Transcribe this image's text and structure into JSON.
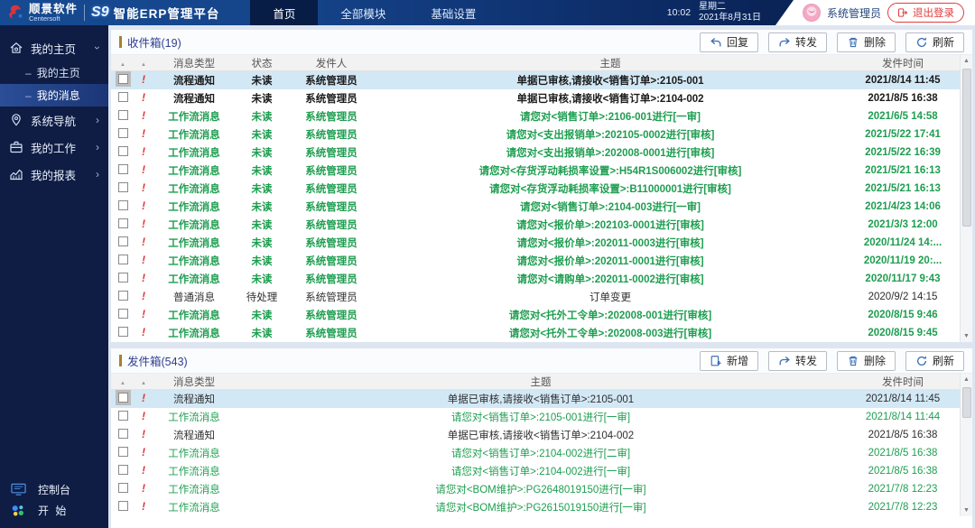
{
  "topbar": {
    "brand_name": "顺景软件",
    "brand_sub": "Centersoft",
    "logo_mark": "S9",
    "product_title": "智能ERP管理平台",
    "tabs": [
      {
        "label": "首页",
        "active": true
      },
      {
        "label": "全部模块",
        "active": false
      },
      {
        "label": "基础设置",
        "active": false
      }
    ],
    "time": "10:02",
    "weekday": "星期二",
    "date": "2021年8月31日",
    "username": "系统管理员",
    "logout_label": "退出登录"
  },
  "sidebar": {
    "groups": [
      {
        "label": "我的主页",
        "icon": "home-icon",
        "expanded": true
      },
      {
        "label": "系统导航",
        "icon": "nav-pin-icon",
        "expanded": false
      },
      {
        "label": "我的工作",
        "icon": "briefcase-icon",
        "expanded": false
      },
      {
        "label": "我的报表",
        "icon": "chart-icon",
        "expanded": false
      }
    ],
    "home_children": [
      {
        "label": "我的主页",
        "active": false
      },
      {
        "label": "我的消息",
        "active": true
      }
    ],
    "footer": [
      {
        "label": "控制台",
        "icon": "console-icon"
      },
      {
        "label": "开 始",
        "icon": "start-icon"
      }
    ]
  },
  "inbox": {
    "title": "收件箱(19)",
    "buttons": [
      {
        "label": "回复",
        "icon": "reply-icon"
      },
      {
        "label": "转发",
        "icon": "forward-icon"
      },
      {
        "label": "删除",
        "icon": "trash-icon"
      },
      {
        "label": "刷新",
        "icon": "refresh-icon"
      }
    ],
    "columns": {
      "type": "消息类型",
      "status": "状态",
      "sender": "发件人",
      "subject": "主题",
      "time": "发件时间"
    },
    "rows": [
      {
        "type": "流程通知",
        "status": "未读",
        "sender": "系统管理员",
        "subject": "单据已审核,请接收<销售订单>:2105-001",
        "time": "2021/8/14 11:45",
        "style": "t-bold",
        "selected": true
      },
      {
        "type": "流程通知",
        "status": "未读",
        "sender": "系统管理员",
        "subject": "单据已审核,请接收<销售订单>:2104-002",
        "time": "2021/8/5 16:38",
        "style": "t-bold"
      },
      {
        "type": "工作流消息",
        "status": "未读",
        "sender": "系统管理员",
        "subject": "请您对<销售订单>:2106-001进行[一审]",
        "time": "2021/6/5 14:58",
        "style": "t-green"
      },
      {
        "type": "工作流消息",
        "status": "未读",
        "sender": "系统管理员",
        "subject": "请您对<支出报销单>:202105-0002进行[审核]",
        "time": "2021/5/22 17:41",
        "style": "t-green"
      },
      {
        "type": "工作流消息",
        "status": "未读",
        "sender": "系统管理员",
        "subject": "请您对<支出报销单>:202008-0001进行[审核]",
        "time": "2021/5/22 16:39",
        "style": "t-green"
      },
      {
        "type": "工作流消息",
        "status": "未读",
        "sender": "系统管理员",
        "subject": "请您对<存货浮动耗损率设置>:H54R1S006002进行[审核]",
        "time": "2021/5/21 16:13",
        "style": "t-green"
      },
      {
        "type": "工作流消息",
        "status": "未读",
        "sender": "系统管理员",
        "subject": "请您对<存货浮动耗损率设置>:B11000001进行[审核]",
        "time": "2021/5/21 16:13",
        "style": "t-green"
      },
      {
        "type": "工作流消息",
        "status": "未读",
        "sender": "系统管理员",
        "subject": "请您对<销售订单>:2104-003进行[一审]",
        "time": "2021/4/23 14:06",
        "style": "t-green"
      },
      {
        "type": "工作流消息",
        "status": "未读",
        "sender": "系统管理员",
        "subject": "请您对<报价单>:202103-0001进行[审核]",
        "time": "2021/3/3 12:00",
        "style": "t-green"
      },
      {
        "type": "工作流消息",
        "status": "未读",
        "sender": "系统管理员",
        "subject": "请您对<报价单>:202011-0003进行[审核]",
        "time": "2020/11/24 14:...",
        "style": "t-green"
      },
      {
        "type": "工作流消息",
        "status": "未读",
        "sender": "系统管理员",
        "subject": "请您对<报价单>:202011-0001进行[审核]",
        "time": "2020/11/19 20:...",
        "style": "t-green"
      },
      {
        "type": "工作流消息",
        "status": "未读",
        "sender": "系统管理员",
        "subject": "请您对<请购单>:202011-0002进行[审核]",
        "time": "2020/11/17 9:43",
        "style": "t-green"
      },
      {
        "type": "普通消息",
        "status": "待处理",
        "sender": "系统管理员",
        "subject": "订单变更",
        "time": "2020/9/2 14:15",
        "style": "t-plain"
      },
      {
        "type": "工作流消息",
        "status": "未读",
        "sender": "系统管理员",
        "subject": "请您对<托外工令单>:202008-001进行[审核]",
        "time": "2020/8/15 9:46",
        "style": "t-green"
      },
      {
        "type": "工作流消息",
        "status": "未读",
        "sender": "系统管理员",
        "subject": "请您对<托外工令单>:202008-003进行[审核]",
        "time": "2020/8/15 9:45",
        "style": "t-green"
      }
    ]
  },
  "outbox": {
    "title": "发件箱(543)",
    "buttons": [
      {
        "label": "新增",
        "icon": "add-icon"
      },
      {
        "label": "转发",
        "icon": "forward-icon"
      },
      {
        "label": "删除",
        "icon": "trash-icon"
      },
      {
        "label": "刷新",
        "icon": "refresh-icon"
      }
    ],
    "columns": {
      "type": "消息类型",
      "subject": "主题",
      "time": "发件时间"
    },
    "rows": [
      {
        "type": "流程通知",
        "subject": "单据已审核,请接收<销售订单>:2105-001",
        "time": "2021/8/14 11:45",
        "style": "t-plain",
        "selected": true
      },
      {
        "type": "工作流消息",
        "subject": "请您对<销售订单>:2105-001进行[一审]",
        "time": "2021/8/14 11:44",
        "style": "t-green-n"
      },
      {
        "type": "流程通知",
        "subject": "单据已审核,请接收<销售订单>:2104-002",
        "time": "2021/8/5 16:38",
        "style": "t-plain"
      },
      {
        "type": "工作流消息",
        "subject": "请您对<销售订单>:2104-002进行[二审]",
        "time": "2021/8/5 16:38",
        "style": "t-green-n"
      },
      {
        "type": "工作流消息",
        "subject": "请您对<销售订单>:2104-002进行[一审]",
        "time": "2021/8/5 16:38",
        "style": "t-green-n"
      },
      {
        "type": "工作流消息",
        "subject": "请您对<BOM维护>:PG2648019150进行[一审]",
        "time": "2021/7/8 12:23",
        "style": "t-green-n"
      },
      {
        "type": "工作流消息",
        "subject": "请您对<BOM维护>:PG2615019150进行[一审]",
        "time": "2021/7/8 12:23",
        "style": "t-green-n"
      }
    ]
  },
  "colors": {
    "accent_gold": "#a87f33",
    "message_green": "#1e9e50",
    "selected_row": "#d3e8f5",
    "flag_red": "#e02a2a",
    "topbar_blue": "#15458b",
    "sidebar_navy": "#0f1d44",
    "logout_red": "#e23d3d",
    "button_icon_blue": "#3a6fb5"
  }
}
